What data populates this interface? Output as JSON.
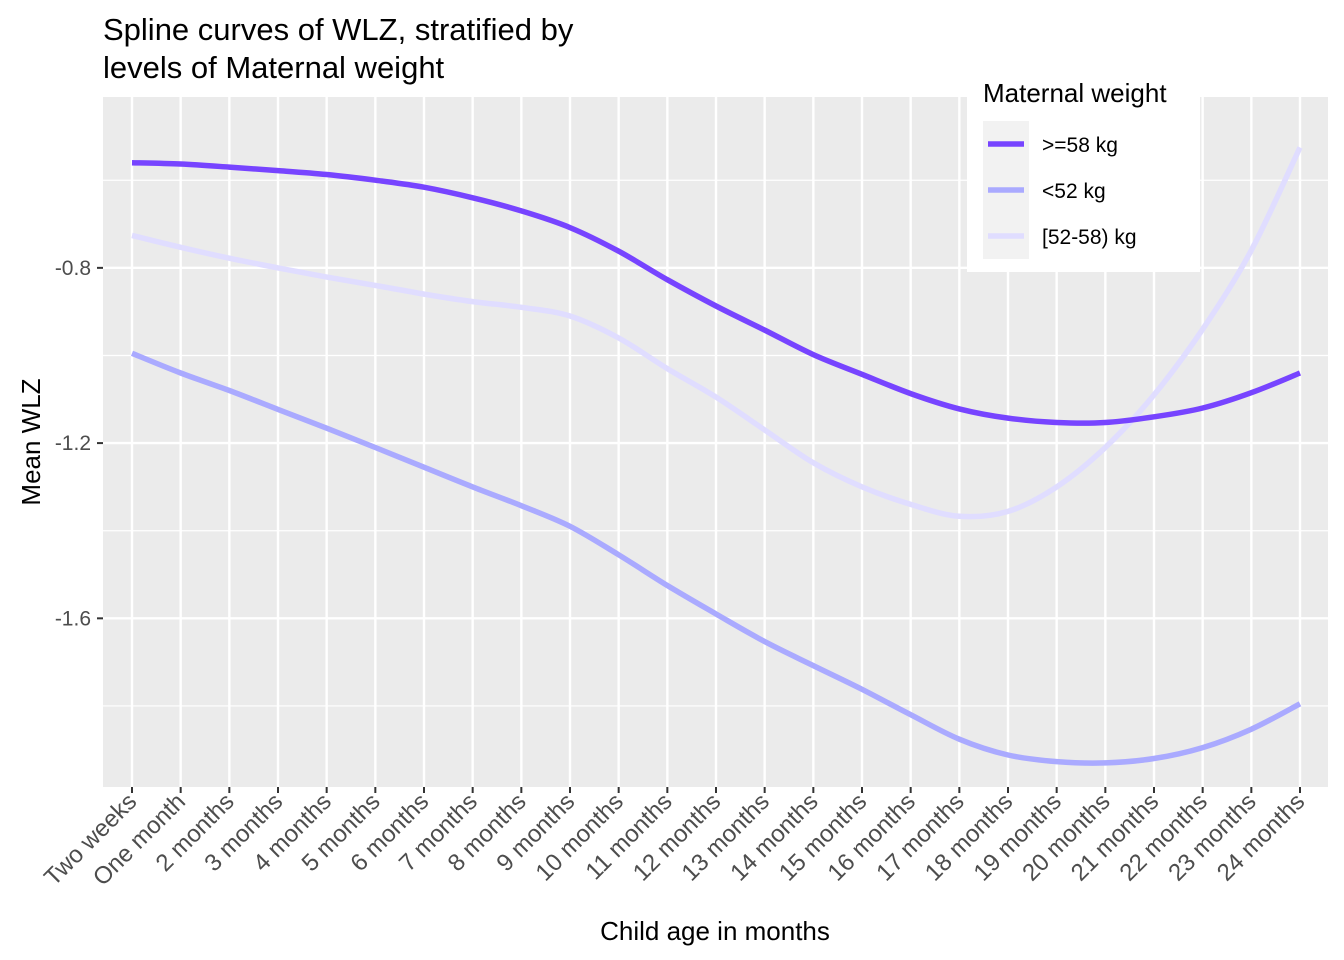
{
  "chart_data": {
    "type": "line",
    "title": "Spline curves of WLZ, stratified by levels of Maternal weight",
    "title_lines": [
      "Spline curves of WLZ, stratified by",
      "levels of Maternal weight"
    ],
    "xlabel": "Child age in months",
    "ylabel": "Mean WLZ",
    "categories": [
      "Two weeks",
      "One month",
      "2 months",
      "3 months",
      "4 months",
      "5 months",
      "6 months",
      "7 months",
      "8 months",
      "9 months",
      "10 months",
      "11 months",
      "12 months",
      "13 months",
      "14 months",
      "15 months",
      "16 months",
      "17 months",
      "18 months",
      "19 months",
      "20 months",
      "21 months",
      "22 months",
      "23 months",
      "24 months"
    ],
    "y_ticks": [
      -0.8,
      -1.2,
      -1.6
    ],
    "y_tick_labels": [
      "-0.8",
      "-1.2",
      "-1.6"
    ],
    "ylim": [
      -1.985,
      -0.41
    ],
    "grid": true,
    "legend_title": "Maternal weight",
    "legend_position": "top-right",
    "series": [
      {
        "name": ">=58 kg",
        "color": "#7744FF",
        "values": [
          -0.56,
          -0.563,
          -0.57,
          -0.578,
          -0.587,
          -0.6,
          -0.616,
          -0.64,
          -0.67,
          -0.708,
          -0.762,
          -0.827,
          -0.887,
          -0.942,
          -0.998,
          -1.043,
          -1.087,
          -1.122,
          -1.143,
          -1.153,
          -1.153,
          -1.14,
          -1.12,
          -1.085,
          -1.04
        ]
      },
      {
        "name": "<52 kg",
        "color": "#AAAAFF",
        "values": [
          -0.995,
          -1.04,
          -1.08,
          -1.123,
          -1.166,
          -1.21,
          -1.255,
          -1.3,
          -1.343,
          -1.39,
          -1.455,
          -1.525,
          -1.59,
          -1.653,
          -1.708,
          -1.762,
          -1.82,
          -1.876,
          -1.912,
          -1.927,
          -1.93,
          -1.92,
          -1.895,
          -1.853,
          -1.795
        ]
      },
      {
        "name": "[52-58) kg",
        "color": "#E0DDFF",
        "values": [
          -0.726,
          -0.753,
          -0.778,
          -0.8,
          -0.821,
          -0.84,
          -0.86,
          -0.877,
          -0.89,
          -0.91,
          -0.96,
          -1.03,
          -1.095,
          -1.17,
          -1.245,
          -1.3,
          -1.34,
          -1.367,
          -1.356,
          -1.3,
          -1.21,
          -1.09,
          -0.94,
          -0.76,
          -0.525
        ]
      }
    ]
  }
}
